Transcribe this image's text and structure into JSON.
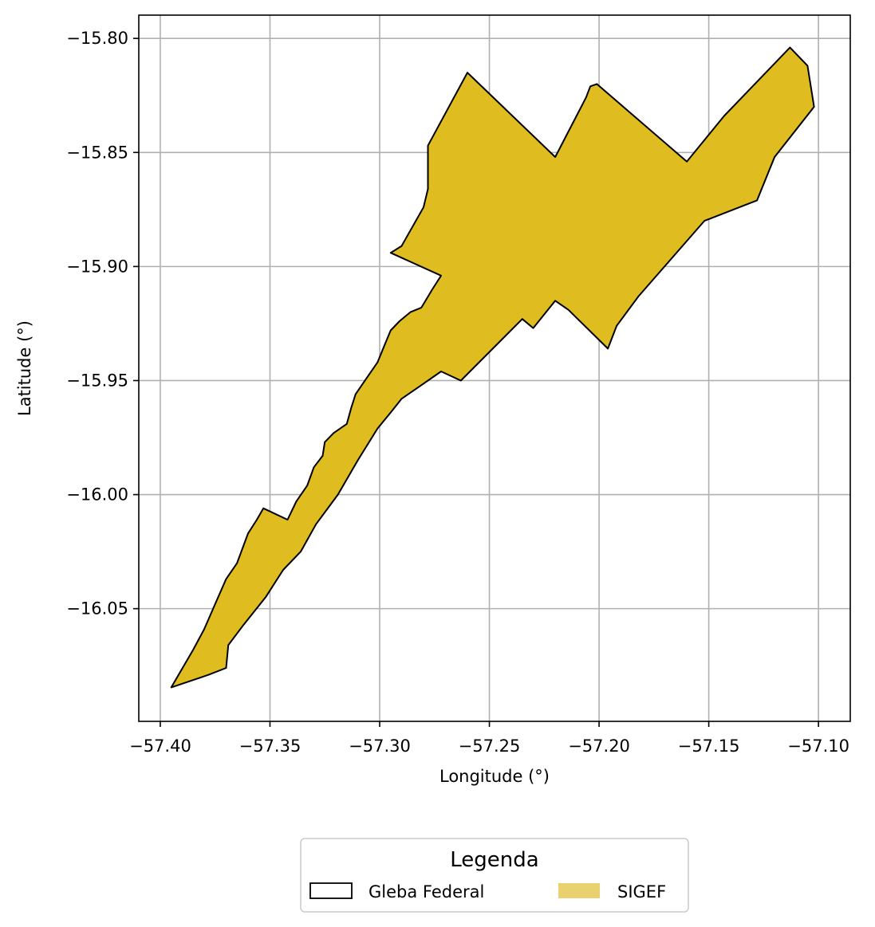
{
  "chart_data": {
    "type": "map",
    "xlabel": "Longitude (°)",
    "ylabel": "Latitude (°)",
    "xlim": [
      -57.4098,
      -57.0855
    ],
    "ylim": [
      -16.0994,
      -15.7898
    ],
    "xticks": [
      -57.4,
      -57.35,
      -57.3,
      -57.25,
      -57.2,
      -57.15,
      -57.1
    ],
    "xtick_labels": [
      "−57.40",
      "−57.35",
      "−57.30",
      "−57.25",
      "−57.20",
      "−57.15",
      "−57.10"
    ],
    "yticks": [
      -15.8,
      -15.85,
      -15.9,
      -15.95,
      -16.0,
      -16.05
    ],
    "ytick_labels": [
      "−15.80",
      "−15.85",
      "−15.90",
      "−15.95",
      "−16.00",
      "−16.05"
    ],
    "grid": true,
    "legend": {
      "title": "Legenda",
      "placement": "bottom-center",
      "entries": [
        {
          "label": "Gleba Federal",
          "style": "outline",
          "color": "#000000"
        },
        {
          "label": "SIGEF",
          "style": "fill",
          "color": "#e8d16e"
        }
      ]
    },
    "polygon": {
      "fill": "#dfbd20",
      "stroke": "#000000",
      "coords": [
        [
          -57.395,
          -16.0845
        ],
        [
          -57.385,
          -16.068
        ],
        [
          -57.38,
          -16.059
        ],
        [
          -57.375,
          -16.048
        ],
        [
          -57.37,
          -16.037
        ],
        [
          -57.365,
          -16.03
        ],
        [
          -57.36,
          -16.017
        ],
        [
          -57.356,
          -16.011
        ],
        [
          -57.353,
          -16.006
        ],
        [
          -57.342,
          -16.011
        ],
        [
          -57.338,
          -16.003
        ],
        [
          -57.333,
          -15.996
        ],
        [
          -57.33,
          -15.988
        ],
        [
          -57.326,
          -15.983
        ],
        [
          -57.325,
          -15.977
        ],
        [
          -57.321,
          -15.973
        ],
        [
          -57.315,
          -15.969
        ],
        [
          -57.313,
          -15.962
        ],
        [
          -57.311,
          -15.956
        ],
        [
          -57.306,
          -15.949
        ],
        [
          -57.301,
          -15.942
        ],
        [
          -57.298,
          -15.935
        ],
        [
          -57.295,
          -15.928
        ],
        [
          -57.291,
          -15.924
        ],
        [
          -57.286,
          -15.92
        ],
        [
          -57.281,
          -15.918
        ],
        [
          -57.276,
          -15.91
        ],
        [
          -57.272,
          -15.904
        ],
        [
          -57.295,
          -15.894
        ],
        [
          -57.29,
          -15.891
        ],
        [
          -57.28,
          -15.874
        ],
        [
          -57.278,
          -15.866
        ],
        [
          -57.278,
          -15.847
        ],
        [
          -57.26,
          -15.815
        ],
        [
          -57.22,
          -15.852
        ],
        [
          -57.206,
          -15.826
        ],
        [
          -57.204,
          -15.821
        ],
        [
          -57.201,
          -15.82
        ],
        [
          -57.16,
          -15.854
        ],
        [
          -57.143,
          -15.834
        ],
        [
          -57.113,
          -15.804
        ],
        [
          -57.105,
          -15.812
        ],
        [
          -57.102,
          -15.83
        ],
        [
          -57.12,
          -15.852
        ],
        [
          -57.128,
          -15.871
        ],
        [
          -57.152,
          -15.88
        ],
        [
          -57.162,
          -15.891
        ],
        [
          -57.182,
          -15.913
        ],
        [
          -57.192,
          -15.926
        ],
        [
          -57.196,
          -15.936
        ],
        [
          -57.214,
          -15.919
        ],
        [
          -57.22,
          -15.915
        ],
        [
          -57.23,
          -15.927
        ],
        [
          -57.235,
          -15.923
        ],
        [
          -57.263,
          -15.95
        ],
        [
          -57.272,
          -15.946
        ],
        [
          -57.281,
          -15.952
        ],
        [
          -57.29,
          -15.958
        ],
        [
          -57.295,
          -15.964
        ],
        [
          -57.301,
          -15.971
        ],
        [
          -57.31,
          -15.985
        ],
        [
          -57.319,
          -16.0
        ],
        [
          -57.329,
          -16.013
        ],
        [
          -57.336,
          -16.025
        ],
        [
          -57.344,
          -16.033
        ],
        [
          -57.352,
          -16.045
        ],
        [
          -57.362,
          -16.057
        ],
        [
          -57.369,
          -16.066
        ],
        [
          -57.37,
          -16.076
        ],
        [
          -57.378,
          -16.079
        ],
        [
          -57.395,
          -16.0845
        ]
      ]
    }
  }
}
